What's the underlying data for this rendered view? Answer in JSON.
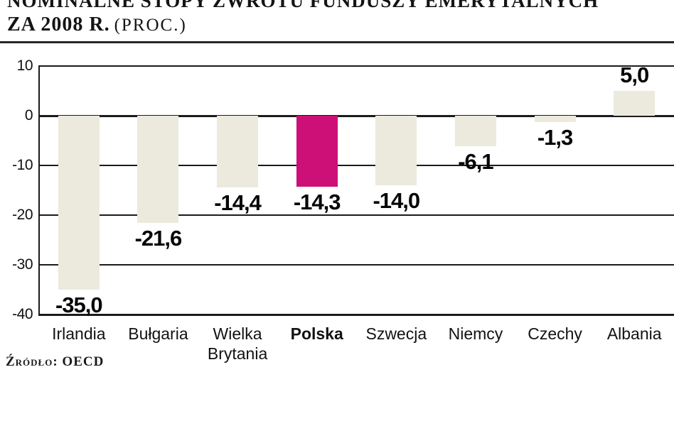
{
  "header": {
    "title_line1": "NOMINALNE STOPY ZWROTU FUNDUSZY EMERYTALNYCH",
    "title_line2_main": "ZA 2008 R.",
    "title_line2_unit": "(PROC.)"
  },
  "footer": {
    "source": "Źródło: OECD"
  },
  "chart_data": {
    "type": "bar",
    "title": "Nominalne stopy zwrotu funduszy emerytalnych za 2008 r. (proc.)",
    "categories": [
      "Irlandia",
      "Bułgaria",
      "Wielka Brytania",
      "Polska",
      "Szwecja",
      "Niemcy",
      "Czechy",
      "Albania"
    ],
    "values": [
      -35.0,
      -21.6,
      -14.4,
      -14.3,
      -14.0,
      -6.1,
      -1.3,
      5.0
    ],
    "value_labels": [
      "-35,0",
      "-21,6",
      "-14,4",
      "-14,3",
      "-14,0",
      "-6,1",
      "-1,3",
      "5,0"
    ],
    "highlighted_category": "Polska",
    "y_ticks": [
      10,
      0,
      -10,
      -20,
      -30,
      -40
    ],
    "ylim": [
      -40,
      10
    ],
    "grid": true,
    "legend": false,
    "xlabel": "",
    "ylabel": "",
    "unit": "proc.",
    "colors": {
      "bar": "#ECEADD",
      "highlight": "#CC1077",
      "line": "#1B1B1B",
      "text": "#0D0D0D"
    },
    "source": "Źródło: OECD"
  }
}
